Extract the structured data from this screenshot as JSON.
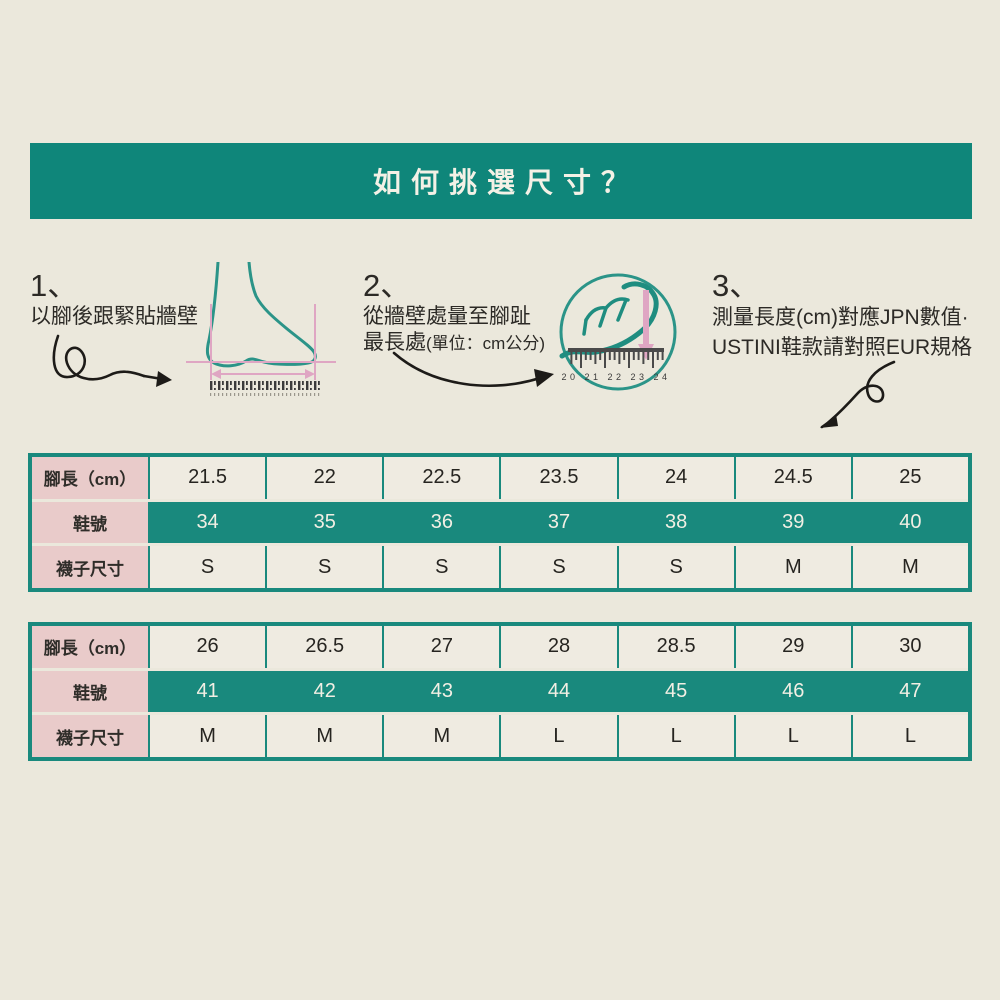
{
  "header": {
    "title": "如何挑選尺寸？"
  },
  "steps": [
    {
      "number": "1、",
      "lines": [
        "以腳後跟緊貼牆壁"
      ]
    },
    {
      "number": "2、",
      "lines": [
        "從牆壁處量至腳趾"
      ],
      "line2_main": "最長處",
      "line2_sub": "(單位：cm公分)"
    },
    {
      "number": "3、",
      "lines": [
        "測量長度(cm)對應JPN數值·",
        "USTINI鞋款請對照EUR規格"
      ]
    }
  ],
  "illustrations": {
    "foot_icon": "foot-side-measure",
    "circle_icon": "toe-ruler-magnifier",
    "ruler_numbers": "20 21 22 23 24"
  },
  "tables": [
    {
      "rows": [
        {
          "label": "腳長（cm）",
          "style": "plain",
          "values": [
            "21.5",
            "22",
            "22.5",
            "23.5",
            "24",
            "24.5",
            "25"
          ]
        },
        {
          "label": "鞋號",
          "style": "teal",
          "values": [
            "34",
            "35",
            "36",
            "37",
            "38",
            "39",
            "40"
          ]
        },
        {
          "label": "襪子尺寸",
          "style": "plain",
          "values": [
            "S",
            "S",
            "S",
            "S",
            "S",
            "M",
            "M"
          ]
        }
      ]
    },
    {
      "rows": [
        {
          "label": "腳長（cm）",
          "style": "plain",
          "values": [
            "26",
            "26.5",
            "27",
            "28",
            "28.5",
            "29",
            "30"
          ]
        },
        {
          "label": "鞋號",
          "style": "teal",
          "values": [
            "41",
            "42",
            "43",
            "44",
            "45",
            "46",
            "47"
          ]
        },
        {
          "label": "襪子尺寸",
          "style": "plain",
          "values": [
            "M",
            "M",
            "M",
            "L",
            "L",
            "L",
            "L"
          ]
        }
      ]
    }
  ],
  "colors": {
    "background": "#ebe8dc",
    "teal_banner": "#0f867a",
    "teal_table": "#19897d",
    "pink_cell": "#e9cbca",
    "pink_line": "#dfa6c3",
    "ink": "#2c2a26",
    "light_text": "#f2efe4",
    "illustration_teal": "#2b9488"
  }
}
